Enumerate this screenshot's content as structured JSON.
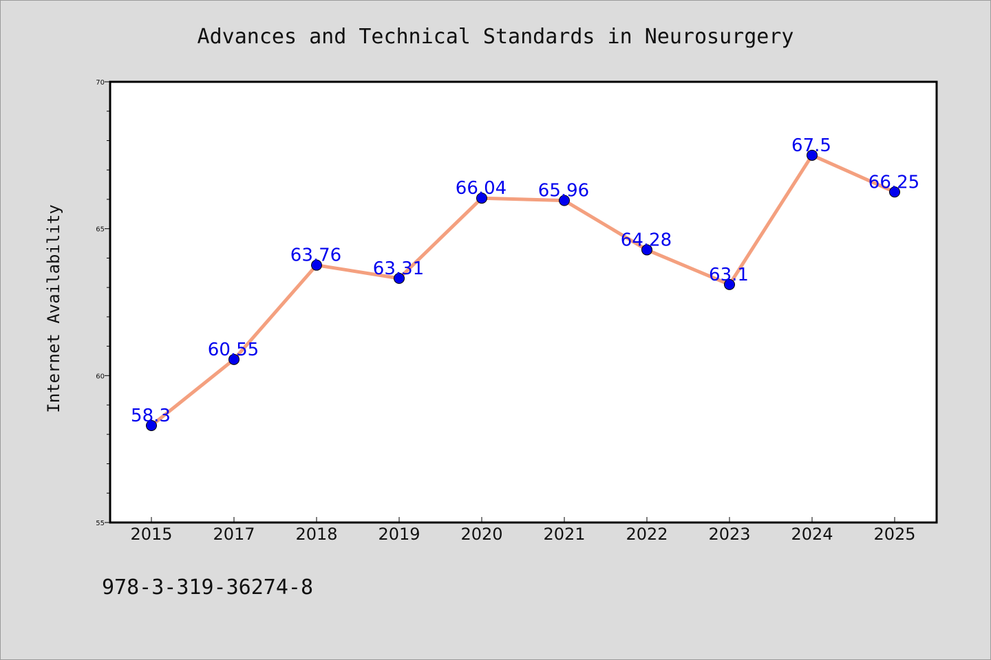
{
  "chart_data": {
    "type": "line",
    "title": "Advances and Technical Standards in Neurosurgery",
    "xlabel": "",
    "ylabel": "Internet Availability",
    "categories": [
      "2015",
      "2017",
      "2018",
      "2019",
      "2020",
      "2021",
      "2022",
      "2023",
      "2024",
      "2025"
    ],
    "series": [
      {
        "values": [
          58.3,
          60.55,
          63.76,
          63.31,
          66.04,
          65.96,
          64.28,
          63.1,
          67.5,
          66.25
        ]
      }
    ],
    "data_labels": [
      "58.3",
      "60.55",
      "63.76",
      "63.31",
      "66.04",
      "65.96",
      "64.28",
      "63.1",
      "67.5",
      "66.25"
    ],
    "ylim": [
      55,
      70
    ],
    "yticks": [
      "55",
      "60",
      "65",
      "70"
    ],
    "grid": false,
    "colors": {
      "line": "#f4a07f",
      "marker": "#0000ee",
      "data_label": "#0000ee"
    }
  },
  "footer": {
    "isbn": "978-3-319-36274-8"
  }
}
